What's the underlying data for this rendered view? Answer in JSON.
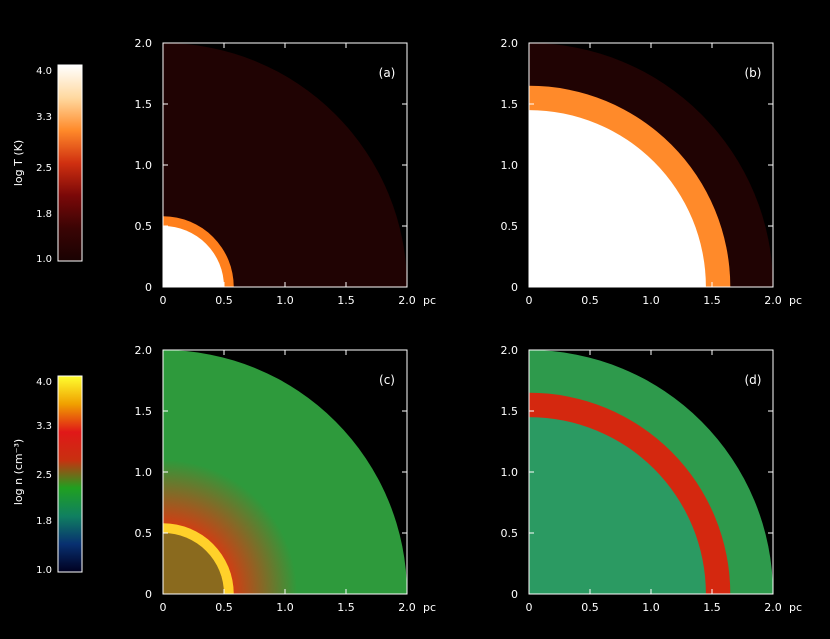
{
  "axis_unit": "pc",
  "colorbars": [
    {
      "label": "log T (K)",
      "ticks": [
        "4.0",
        "3.3",
        "2.5",
        "1.8",
        "1.0"
      ],
      "range": [
        1.0,
        4.0
      ],
      "stops": [
        "#ffffff",
        "#ffd9a0",
        "#ff8a2a",
        "#d03010",
        "#7a0808",
        "#3a0404",
        "#1a0202"
      ]
    },
    {
      "label": "log n (cm⁻³)",
      "ticks": [
        "4.0",
        "3.3",
        "2.5",
        "1.8",
        "1.0"
      ],
      "range": [
        1.0,
        4.0
      ],
      "stops": [
        "#ffff30",
        "#f0a000",
        "#e01818",
        "#c83010",
        "#20a020",
        "#108060",
        "#083070",
        "#000020"
      ]
    }
  ],
  "chart_data": [
    {
      "type": "heatmap",
      "label": "(a)",
      "field": "temperature",
      "x_ticks": [
        "0",
        "0.5",
        "1.0",
        "1.5",
        "2.0"
      ],
      "y_ticks": [
        "0",
        "0.5",
        "1.0",
        "1.5",
        "2.0"
      ],
      "xlim": [
        0,
        2.0
      ],
      "ylim": [
        0,
        2.0
      ],
      "outer_radius_pc": 2.0,
      "background": "#200303",
      "layers": [
        {
          "region": "shell",
          "r_inner_pc": 0.5,
          "r_outer_pc": 0.58,
          "color": "#ff7f1c"
        },
        {
          "region": "bubble",
          "r_outer_pc": 0.5,
          "color": "#ffffff"
        }
      ]
    },
    {
      "type": "heatmap",
      "label": "(b)",
      "field": "temperature",
      "x_ticks": [
        "0",
        "0.5",
        "1.0",
        "1.5",
        "2.0"
      ],
      "y_ticks": [
        "0",
        "0.5",
        "1.0",
        "1.5",
        "2.0"
      ],
      "xlim": [
        0,
        2.0
      ],
      "ylim": [
        0,
        2.0
      ],
      "outer_radius_pc": 2.0,
      "background": "#200303",
      "layers": [
        {
          "region": "shell",
          "r_inner_pc": 1.45,
          "r_outer_pc": 1.65,
          "color": "#ff8a2a"
        },
        {
          "region": "bubble",
          "r_outer_pc": 1.45,
          "color": "#ffffff"
        }
      ]
    },
    {
      "type": "heatmap",
      "label": "(c)",
      "field": "density",
      "x_ticks": [
        "0",
        "0.5",
        "1.0",
        "1.5",
        "2.0"
      ],
      "y_ticks": [
        "0",
        "0.5",
        "1.0",
        "1.5",
        "2.0"
      ],
      "xlim": [
        0,
        2.0
      ],
      "ylim": [
        0,
        2.0
      ],
      "outer_radius_pc": 2.0,
      "background": "#2e9a3c",
      "layers": [
        {
          "region": "halo",
          "r_inner_pc": 0.55,
          "r_outer_pc": 1.1,
          "color": "#d83a12"
        },
        {
          "region": "shell",
          "r_inner_pc": 0.5,
          "r_outer_pc": 0.58,
          "color": "#ffd12a"
        },
        {
          "region": "bubble",
          "r_outer_pc": 0.5,
          "color": "#8a6a1e"
        }
      ]
    },
    {
      "type": "heatmap",
      "label": "(d)",
      "field": "density",
      "x_ticks": [
        "0",
        "0.5",
        "1.0",
        "1.5",
        "2.0"
      ],
      "y_ticks": [
        "0",
        "0.5",
        "1.0",
        "1.5",
        "2.0"
      ],
      "xlim": [
        0,
        2.0
      ],
      "ylim": [
        0,
        2.0
      ],
      "outer_radius_pc": 2.0,
      "background": "#2e9a4c",
      "layers": [
        {
          "region": "shell",
          "r_inner_pc": 1.45,
          "r_outer_pc": 1.65,
          "color": "#d4280f"
        },
        {
          "region": "bubble",
          "r_outer_pc": 1.45,
          "color": "#2b9a62"
        }
      ]
    }
  ]
}
